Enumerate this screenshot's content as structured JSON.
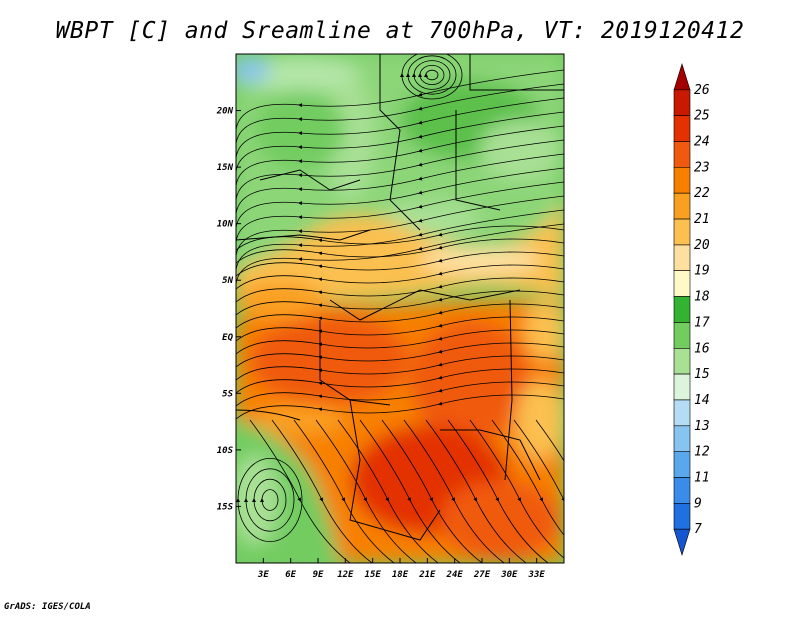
{
  "title": "WBPT [C] and Sreamline at 700hPa, VT: 2019120412",
  "credit": "GrADS: IGES/COLA",
  "map": {
    "lon_range": [
      0,
      36
    ],
    "lat_range": [
      -20,
      25
    ],
    "lon_ticks": [
      "3E",
      "6E",
      "9E",
      "12E",
      "15E",
      "18E",
      "21E",
      "24E",
      "27E",
      "30E",
      "33E"
    ],
    "lon_values": [
      3,
      6,
      9,
      12,
      15,
      18,
      21,
      24,
      27,
      30,
      33
    ],
    "lat_ticks": [
      "20N",
      "15N",
      "10N",
      "5N",
      "EQ",
      "5S",
      "10S",
      "15S"
    ],
    "lat_values": [
      20,
      15,
      10,
      5,
      0,
      -5,
      -10,
      -15
    ]
  },
  "colorbar": {
    "levels": [
      "26",
      "25",
      "24",
      "23",
      "22",
      "21",
      "20",
      "19",
      "18",
      "17",
      "16",
      "15",
      "14",
      "13",
      "12",
      "11",
      "9",
      "7"
    ],
    "colors": [
      "#a50000",
      "#c81a00",
      "#e33200",
      "#f05a10",
      "#f88000",
      "#faa020",
      "#fbc050",
      "#fde0a0",
      "#fff8c8",
      "#32b432",
      "#72cc60",
      "#a8e094",
      "#dcf4dc",
      "#b4dcf4",
      "#88c4f0",
      "#5aa8ec",
      "#3a8ce8",
      "#2070e0",
      "#1455d0"
    ]
  }
}
